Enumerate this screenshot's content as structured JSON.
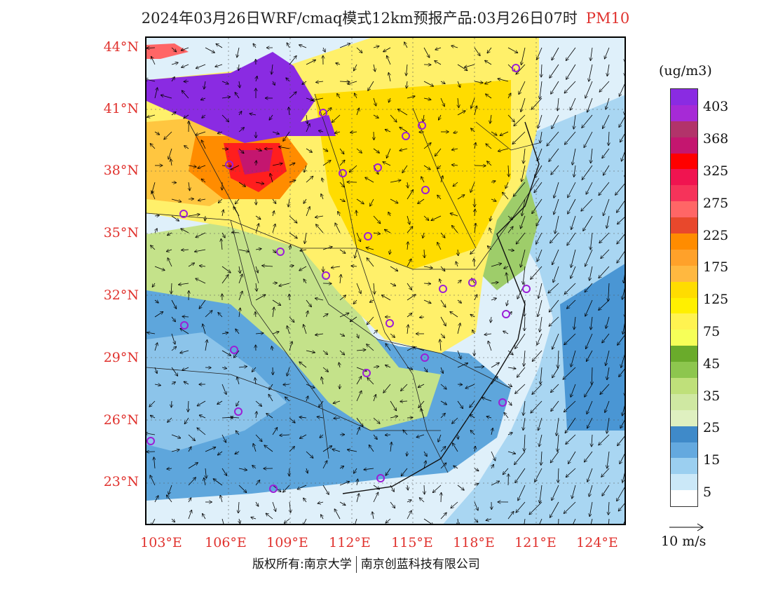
{
  "title": {
    "main": "2024年03月26日WRF/cmaq模式12km预报产品:03月26日07时",
    "pollutant": "PM10",
    "pollutant_color": "#e0322e"
  },
  "map": {
    "lat_labels": [
      "44°N",
      "41°N",
      "38°N",
      "35°N",
      "32°N",
      "29°N",
      "26°N",
      "23°N"
    ],
    "lon_labels": [
      "103°E",
      "106°E",
      "109°E",
      "112°E",
      "115°E",
      "118°E",
      "121°E",
      "124°E"
    ],
    "city_marker_color": "#9b1fd6",
    "station_count": 25
  },
  "legend": {
    "units": "(ug/m3)",
    "labels": [
      "403",
      "368",
      "325",
      "275",
      "225",
      "175",
      "125",
      "75",
      "45",
      "35",
      "25",
      "15",
      "5"
    ],
    "colors": [
      "#8a2be2",
      "#a62ad6",
      "#b2336a",
      "#c4166f",
      "#ff0000",
      "#f01450",
      "#f6335a",
      "#ff6666",
      "#e8482c",
      "#ff8c00",
      "#ffa12a",
      "#ffb840",
      "#ffdc00",
      "#fff000",
      "#fff350",
      "#f6ff58",
      "#6aab2b",
      "#8dc64e",
      "#bfe07a",
      "#cfe8a2",
      "#dff0c0",
      "#3f8ac9",
      "#64a9df",
      "#9bcff0",
      "#cbe8f8",
      "#ffffff"
    ]
  },
  "wind": {
    "label": "10 m/s"
  },
  "footer": {
    "left": "版权所有:南京大学",
    "right": "南京创蓝科技有限公司"
  }
}
